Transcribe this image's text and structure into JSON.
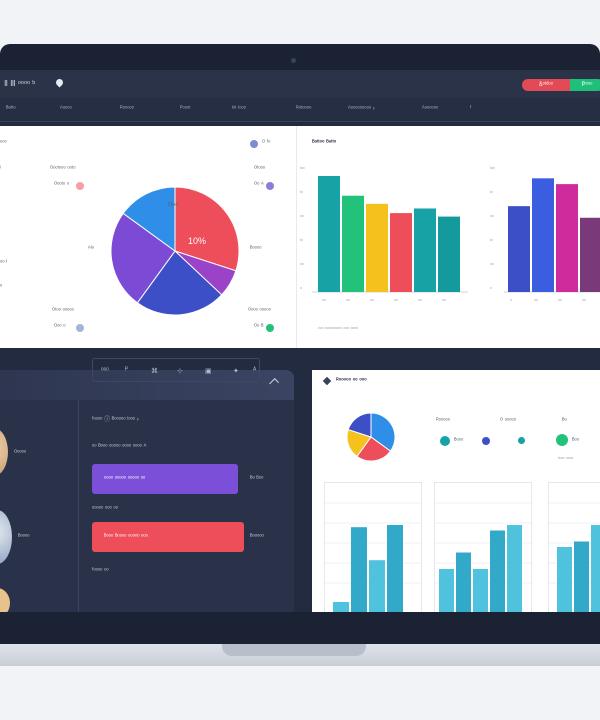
{
  "window": {
    "title": "Ⅱ Ⅲ ᵒᵒᵒᵒ ᵇ",
    "pill_left": "Ᵹᵒᵗᵈᵒᵒ",
    "pill_right": "Ᵽᵒᵒᵒ"
  },
  "nav": {
    "items": [
      "ᴮᵃᵗᵗᵒ",
      "ᴬᵘᵒᵒᵒ",
      "ᴿᵒᵒᵒᵒᵒ",
      "ᴾᵒᵒᵒᵗ",
      "ᴵᵒᵗ ᴵᵒᵒᵒ",
      "ᴿᵒᵗᵒᵒᵒᵒ",
      "ᴬᵒᵒᵒᵒᵒᵒᵒᵒᵒ ›",
      "ᴬᵒᵒᵒᵒᵒᵒ",
      "ᶠ"
    ]
  },
  "colors": {
    "blue": "#2f8fe8",
    "red": "#ee4d5a",
    "purple": "#7b4bd6",
    "indigo": "#3c4fc7",
    "teal": "#17a2a6",
    "green": "#22c27a",
    "yellow": "#f5c21d",
    "magenta": "#d02b9c",
    "plum": "#7a3a7a",
    "cyan": "#4fc3dd"
  },
  "pie_panel": {
    "left_labels": [
      "ᵒᵒᵒ",
      "ᴵ",
      "ᵒᵒ ᴵ",
      "ᵒ"
    ],
    "legend_top_left": [
      "ᴼᵒᵒᵗᵒᵒᵒ ᵒᵒᵗᵒ",
      "ᴼᵒᵒᵗᵒ ᵒ"
    ],
    "legend_top_right": [
      "ᴼ ᶠᵒ",
      "ᴼᵗᵒᵒᵒ",
      "ᴼᵒ ᴬ"
    ],
    "legend_bottom_left": [
      "ᴼᵗᵒᵒ ᵒᵒᵒᵒᵒ",
      "ᴼᵒᵒ ᵒ"
    ],
    "legend_bottom_right": [
      "ᴼᵒᵒᵒ ᵒᵒᵒᵒᵒ",
      "ᴼᵒ ᴮ"
    ],
    "mid_left": "ᴬᴵᵒ",
    "mid_right": "ᴮᵒᵒᵒᵒ"
  },
  "pie_chart": {
    "type": "pie",
    "labels": [
      "",
      ""
    ],
    "slice_labels": [
      "ᴼᵒᵒ",
      "10%"
    ],
    "values": [
      30,
      7,
      23,
      25,
      15
    ],
    "colors": [
      "#ee4d5a",
      "#9a42c8",
      "#3c4fc7",
      "#7b4bd6",
      "#2f8fe8"
    ]
  },
  "bar_chart_1": {
    "type": "bar",
    "title": "ᴮᵃᵗᵗᵒᵒ ᴮᵃᵗᵗᵒ",
    "ytick": [
      "ᴵᵒᵒ",
      "ᴵᵒ",
      "ᵒᵒ",
      "ᴵᵒ",
      "ᵒᵒ",
      "ᵒ"
    ],
    "xtick": [
      "ᵒᵒ",
      "ᵒᵒ",
      "ᵒᵒ",
      "ᵒᵒ",
      "ᵒᵒ",
      "ᵒᵒ"
    ],
    "footer": "ᵒᵒᵒ ᵒᵒᵒᵒᵒᵒᵒᵒᵒ ᵒᵒᵒ ᵒᵒᵒᵒ",
    "values": [
      100,
      83,
      76,
      68,
      72,
      65
    ],
    "colors": [
      "#17a2a6",
      "#22c27a",
      "#f5c21d",
      "#ee4d5a",
      "#17a2a6",
      "#129a9c"
    ],
    "ylim": [
      0,
      100
    ]
  },
  "bar_chart_2": {
    "type": "bar",
    "ytick": [
      "ᴵᵒᵒ",
      "ᴵᵒ",
      "ᵒᵒ",
      "ᴵᵒ",
      "ᵒᵒ",
      "ᵒ"
    ],
    "xtick": [
      "ᵒ",
      "ᵒᵒ",
      "ᵒᵒ",
      "ᵒᵒ"
    ],
    "values": [
      74,
      98,
      93,
      64
    ],
    "colors": [
      "#3c4fc7",
      "#3b5de0",
      "#d02b9c",
      "#7a3a7a"
    ],
    "ylim": [
      0,
      100
    ]
  },
  "profile_card": {
    "names": [
      "ᴼᵒᵒᵒᵒ",
      "ᴮᵒᵒᵒᵒ"
    ],
    "row1_label": "ᶠᵒᵒᵒᵒ ⓘ ᴮᵒᵒᵒᵒᵒ ᴵᵒᵒᵒ ›",
    "row2_label": "ᵒᵒ ᴮᵒᵒᵒ ᵒᵒᵒᵒᵒ ᵒᵒᵒᵒ ᵒᵒᵒᵒ ᴬ",
    "purple_button": "ᵒᵒᵒᵒ          ᵒᵒᵒᵒᵒ ᵒᵒᵒᵒᵒ ᵒᵒ",
    "purple_side": "ᴮᵒ ᴮᵒᵒ",
    "row3_label": "ᵒᵒᵒᵒᵒ ᵒᵒᵒ ᵒᵒ",
    "red_button": "ᴮᵒᵒᵒ          ᴮᵒᵒᵒᵒ ᵒᵒᵒᵒᵒ ᵒᵒᵒ",
    "red_side": "ᴮᵒᵒᵒᵒᵒ",
    "row4_label": "ᶠᵒᵒᵒᵒ ᵒᵒ",
    "toolbar": [
      "ᵒᵒᵒ",
      "ᴾ",
      "⌘",
      "⊹",
      "▣",
      "✦",
      "ᴬ"
    ]
  },
  "report_card": {
    "title": "ᴿᵒᵒᵒᵒᵒ ᵒᵒ ᵒᵒᵒ",
    "legend_a": "ᴿᵒᵒᵒᵒᵒ",
    "legend_b": "ᴼ ᵒᵒᵒᵒᵒ",
    "legend_c": "ᴮᵒ",
    "legend_items": [
      "ᴮᵒᵒᵒ",
      "",
      "",
      "ᴮᵒᵒ"
    ],
    "legend_colors": [
      "#17a2a6",
      "#3c4fc7",
      "#17a2a6",
      "#22c27a"
    ],
    "date_text": "ᴵᵒᵒᵒ ᵒᵒᵒᵒ",
    "mini_pie_values": [
      35,
      25,
      20,
      20
    ],
    "mini_pie_colors": [
      "#2f8fe8",
      "#ee4d5a",
      "#f5c21d",
      "#3c4fc7"
    ],
    "bars_col1": [
      10,
      78,
      48,
      80
    ],
    "bars_col2": [
      40,
      55,
      40,
      75,
      80
    ],
    "bars_col3": [
      60,
      65,
      80
    ]
  }
}
